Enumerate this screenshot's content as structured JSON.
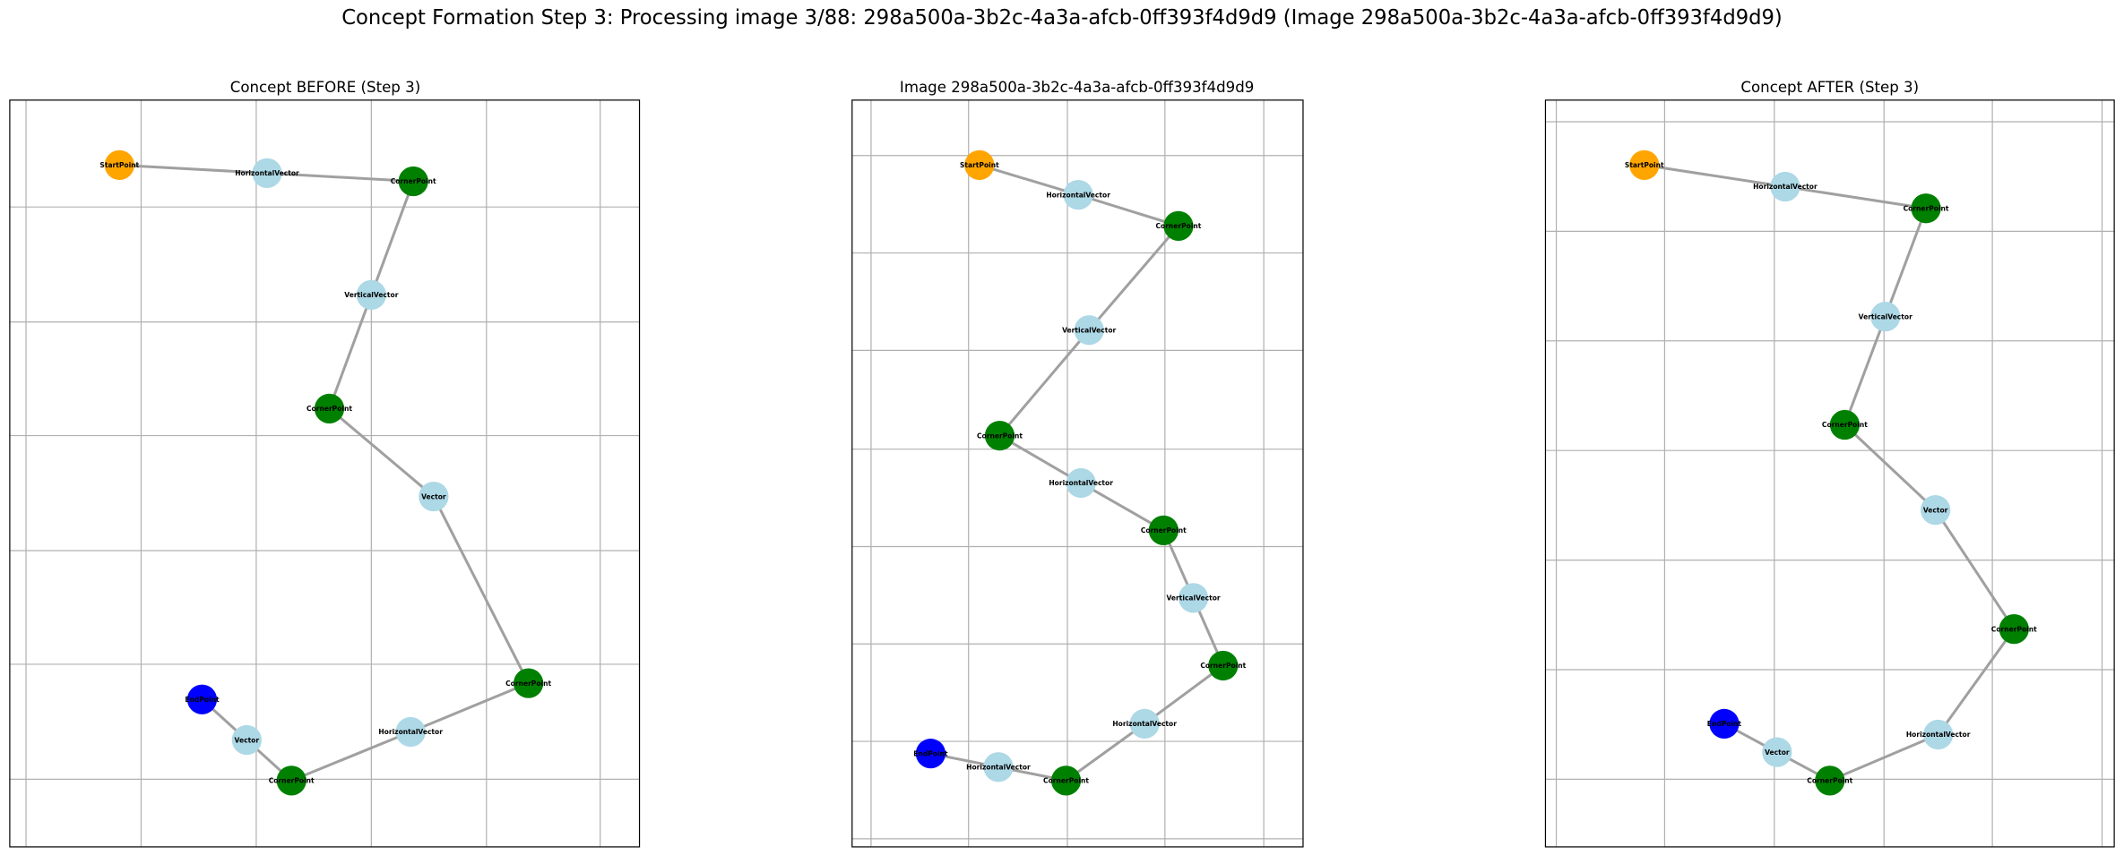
{
  "title": "Concept Formation Step 3: Processing image 3/88: 298a500a-3b2c-4a3a-afcb-0ff393f4d9d9 (Image 298a500a-3b2c-4a3a-afcb-0ff393f4d9d9)",
  "panels": [
    {
      "title": "Concept BEFORE (Step 3)",
      "nodes": [
        {
          "label": "StartPoint",
          "color": "orange"
        },
        {
          "label": "HorizontalVector",
          "color": "lightblue"
        },
        {
          "label": "CornerPoint",
          "color": "green"
        },
        {
          "label": "VerticalVector",
          "color": "lightblue"
        },
        {
          "label": "CornerPoint",
          "color": "green"
        },
        {
          "label": "Vector",
          "color": "lightblue"
        },
        {
          "label": "CornerPoint",
          "color": "green"
        },
        {
          "label": "HorizontalVector",
          "color": "lightblue"
        },
        {
          "label": "CornerPoint",
          "color": "green"
        },
        {
          "label": "Vector",
          "color": "lightblue"
        },
        {
          "label": "EndPoint",
          "color": "blue"
        }
      ]
    },
    {
      "title": "Image 298a500a-3b2c-4a3a-afcb-0ff393f4d9d9",
      "nodes": [
        {
          "label": "StartPoint",
          "color": "orange"
        },
        {
          "label": "HorizontalVector",
          "color": "lightblue"
        },
        {
          "label": "CornerPoint",
          "color": "green"
        },
        {
          "label": "VerticalVector",
          "color": "lightblue"
        },
        {
          "label": "CornerPoint",
          "color": "green"
        },
        {
          "label": "HorizontalVector",
          "color": "lightblue"
        },
        {
          "label": "CornerPoint",
          "color": "green"
        },
        {
          "label": "VerticalVector",
          "color": "lightblue"
        },
        {
          "label": "CornerPoint",
          "color": "green"
        },
        {
          "label": "HorizontalVector",
          "color": "lightblue"
        },
        {
          "label": "CornerPoint",
          "color": "green"
        },
        {
          "label": "HorizontalVector",
          "color": "lightblue"
        },
        {
          "label": "EndPoint",
          "color": "blue"
        }
      ]
    },
    {
      "title": "Concept AFTER (Step 3)",
      "nodes": [
        {
          "label": "StartPoint",
          "color": "orange"
        },
        {
          "label": "HorizontalVector",
          "color": "lightblue"
        },
        {
          "label": "CornerPoint",
          "color": "green"
        },
        {
          "label": "VerticalVector",
          "color": "lightblue"
        },
        {
          "label": "CornerPoint",
          "color": "green"
        },
        {
          "label": "Vector",
          "color": "lightblue"
        },
        {
          "label": "CornerPoint",
          "color": "green"
        },
        {
          "label": "HorizontalVector",
          "color": "lightblue"
        },
        {
          "label": "CornerPoint",
          "color": "green"
        },
        {
          "label": "Vector",
          "color": "lightblue"
        },
        {
          "label": "EndPoint",
          "color": "blue"
        }
      ]
    }
  ]
}
